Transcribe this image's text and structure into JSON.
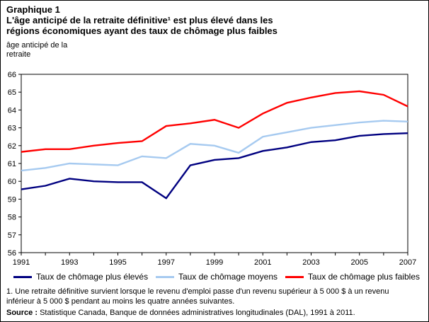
{
  "header": {
    "label": "Graphique 1",
    "title_line1": "L'âge anticipé de la retraite définitive¹ est plus élevé dans les",
    "title_line2": "régions économiques ayant des taux de chômage plus faibles"
  },
  "y_axis_unit": {
    "line1": "âge anticipé de la",
    "line2": "retraite"
  },
  "chart_data": {
    "type": "line",
    "title": "L'âge anticipé de la retraite définitive est plus élevé dans les régions économiques ayant des taux de chômage plus faibles",
    "xlabel": "",
    "ylabel": "âge anticipé de la retraite",
    "ylim": [
      56,
      66
    ],
    "y_ticks": [
      56,
      57,
      58,
      59,
      60,
      61,
      62,
      63,
      64,
      65,
      66
    ],
    "x": [
      1991,
      1992,
      1993,
      1994,
      1995,
      1996,
      1997,
      1998,
      1999,
      2000,
      2001,
      2002,
      2003,
      2004,
      2005,
      2006,
      2007
    ],
    "x_tick_labels": [
      1991,
      1993,
      1995,
      1997,
      1999,
      2001,
      2003,
      2005,
      2007
    ],
    "grid": false,
    "legend_position": "bottom",
    "series": [
      {
        "name": "Taux de chômage plus élevés",
        "color": "#000080",
        "values": [
          59.55,
          59.75,
          60.15,
          60.0,
          59.95,
          59.95,
          59.05,
          60.9,
          61.2,
          61.3,
          61.7,
          61.9,
          62.2,
          62.3,
          62.55,
          62.65,
          62.7
        ]
      },
      {
        "name": "Taux de chômage moyens",
        "color": "#A6CAF0",
        "values": [
          60.6,
          60.75,
          61.0,
          60.95,
          60.9,
          61.4,
          61.3,
          62.1,
          62.0,
          61.6,
          62.5,
          62.75,
          63.0,
          63.15,
          63.3,
          63.4,
          63.35
        ]
      },
      {
        "name": "Taux de chômage plus faibles",
        "color": "#FF0000",
        "values": [
          61.65,
          61.8,
          61.8,
          62.0,
          62.15,
          62.25,
          63.1,
          63.25,
          63.45,
          63.0,
          63.8,
          64.4,
          64.7,
          64.95,
          65.05,
          64.85,
          64.2
        ]
      }
    ]
  },
  "footnote": {
    "line1": "1. Une retraite définitive survient lorsque le revenu d'emploi passe d'un revenu supérieur à 5 000 $ à un revenu",
    "line2": "inférieur à 5 000 $ pendant au moins les quatre années suivantes."
  },
  "source": {
    "label": "Source :",
    "text": " Statistique Canada, Banque de données administratives longitudinales (DAL), 1991 à 2011."
  }
}
